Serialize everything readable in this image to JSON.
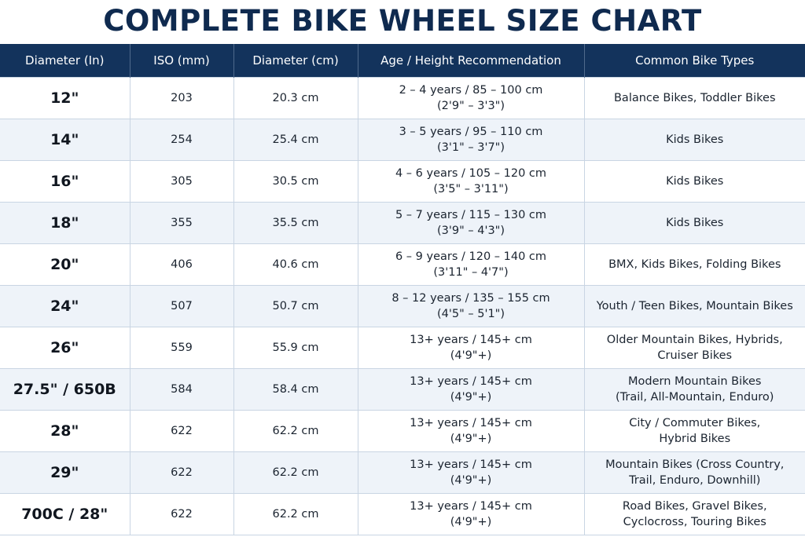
{
  "title": "COMPLETE BIKE WHEEL SIZE CHART",
  "columns": [
    "Diameter (In)",
    "ISO (mm)",
    "Diameter (cm)",
    "Age / Height Recommendation",
    "Common Bike Types"
  ],
  "rows": [
    {
      "size": "12\"",
      "iso": "203",
      "cm": "20.3 cm",
      "rec1": "2 – 4 years / 85 – 100 cm",
      "rec2": "(2'9\" – 3'3\")",
      "type1": "Balance Bikes, Toddler Bikes",
      "type2": ""
    },
    {
      "size": "14\"",
      "iso": "254",
      "cm": "25.4 cm",
      "rec1": "3 – 5 years / 95 – 110 cm",
      "rec2": "(3'1\" – 3'7\")",
      "type1": "Kids Bikes",
      "type2": ""
    },
    {
      "size": "16\"",
      "iso": "305",
      "cm": "30.5 cm",
      "rec1": "4 – 6 years / 105 – 120 cm",
      "rec2": "(3'5\" – 3'11\")",
      "type1": "Kids Bikes",
      "type2": ""
    },
    {
      "size": "18\"",
      "iso": "355",
      "cm": "35.5 cm",
      "rec1": "5 – 7 years / 115 – 130 cm",
      "rec2": "(3'9\" – 4'3\")",
      "type1": "Kids Bikes",
      "type2": ""
    },
    {
      "size": "20\"",
      "iso": "406",
      "cm": "40.6 cm",
      "rec1": "6 – 9 years / 120 – 140 cm",
      "rec2": "(3'11\" – 4'7\")",
      "type1": "BMX, Kids Bikes, Folding Bikes",
      "type2": ""
    },
    {
      "size": "24\"",
      "iso": "507",
      "cm": "50.7 cm",
      "rec1": "8 – 12 years / 135 – 155 cm",
      "rec2": "(4'5\" – 5'1\")",
      "type1": "Youth / Teen Bikes, Mountain Bikes",
      "type2": ""
    },
    {
      "size": "26\"",
      "iso": "559",
      "cm": "55.9 cm",
      "rec1": "13+ years / 145+ cm",
      "rec2": "(4'9\"+)",
      "type1": "Older Mountain Bikes, Hybrids,",
      "type2": "Cruiser Bikes"
    },
    {
      "size": "27.5\" / 650B",
      "iso": "584",
      "cm": "58.4 cm",
      "rec1": "13+ years / 145+ cm",
      "rec2": "(4'9\"+)",
      "type1": "Modern Mountain Bikes",
      "type2": "(Trail, All-Mountain, Enduro)"
    },
    {
      "size": "28\"",
      "iso": "622",
      "cm": "62.2 cm",
      "rec1": "13+ years / 145+ cm",
      "rec2": "(4'9\"+)",
      "type1": "City / Commuter Bikes,",
      "type2": "Hybrid Bikes"
    },
    {
      "size": "29\"",
      "iso": "622",
      "cm": "62.2 cm",
      "rec1": "13+ years / 145+ cm",
      "rec2": "(4'9\"+)",
      "type1": "Mountain Bikes (Cross Country,",
      "type2": "Trail, Enduro, Downhill)"
    },
    {
      "size": "700C / 28\"",
      "iso": "622",
      "cm": "62.2 cm",
      "rec1": "13+ years / 145+ cm",
      "rec2": "(4'9\"+)",
      "type1": "Road Bikes, Gravel Bikes,",
      "type2": "Cyclocross, Touring Bikes"
    }
  ],
  "colors": {
    "header_bg": "#13335c",
    "title": "#0f2a4f",
    "stripe": "#eef3f9"
  }
}
